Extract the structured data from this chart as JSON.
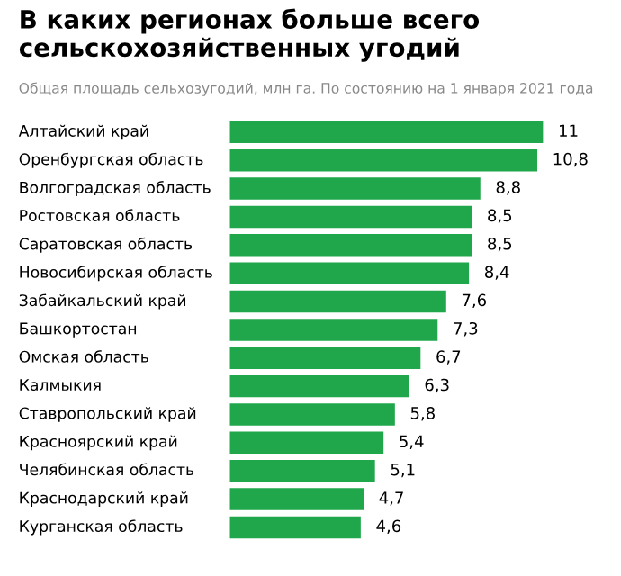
{
  "chart_data": {
    "type": "bar",
    "orientation": "horizontal",
    "title": "В каких регионах больше всего сельскохозяйственных угодий",
    "subtitle": "Общая площадь сельхозугодий, млн га. По состоянию на 1 января 2021 года",
    "categories": [
      "Алтайский край",
      "Оренбургская область",
      "Волгоградская область",
      "Ростовская область",
      "Саратовская область",
      "Новосибирская область",
      "Забайкальский край",
      "Башкортостан",
      "Омская область",
      "Калмыкия",
      "Ставропольский край",
      "Красноярский край",
      "Челябинская область",
      "Краснодарский край",
      "Курганская область"
    ],
    "values": [
      11,
      10.8,
      8.8,
      8.5,
      8.5,
      8.4,
      7.6,
      7.3,
      6.7,
      6.3,
      5.8,
      5.4,
      5.1,
      4.7,
      4.6
    ],
    "value_labels": [
      "11",
      "10,8",
      "8,8",
      "8,5",
      "8,5",
      "8,4",
      "7,6",
      "7,3",
      "6,7",
      "6,3",
      "5,8",
      "5,4",
      "5,1",
      "4,7",
      "4,6"
    ],
    "color": "#21a74b"
  }
}
